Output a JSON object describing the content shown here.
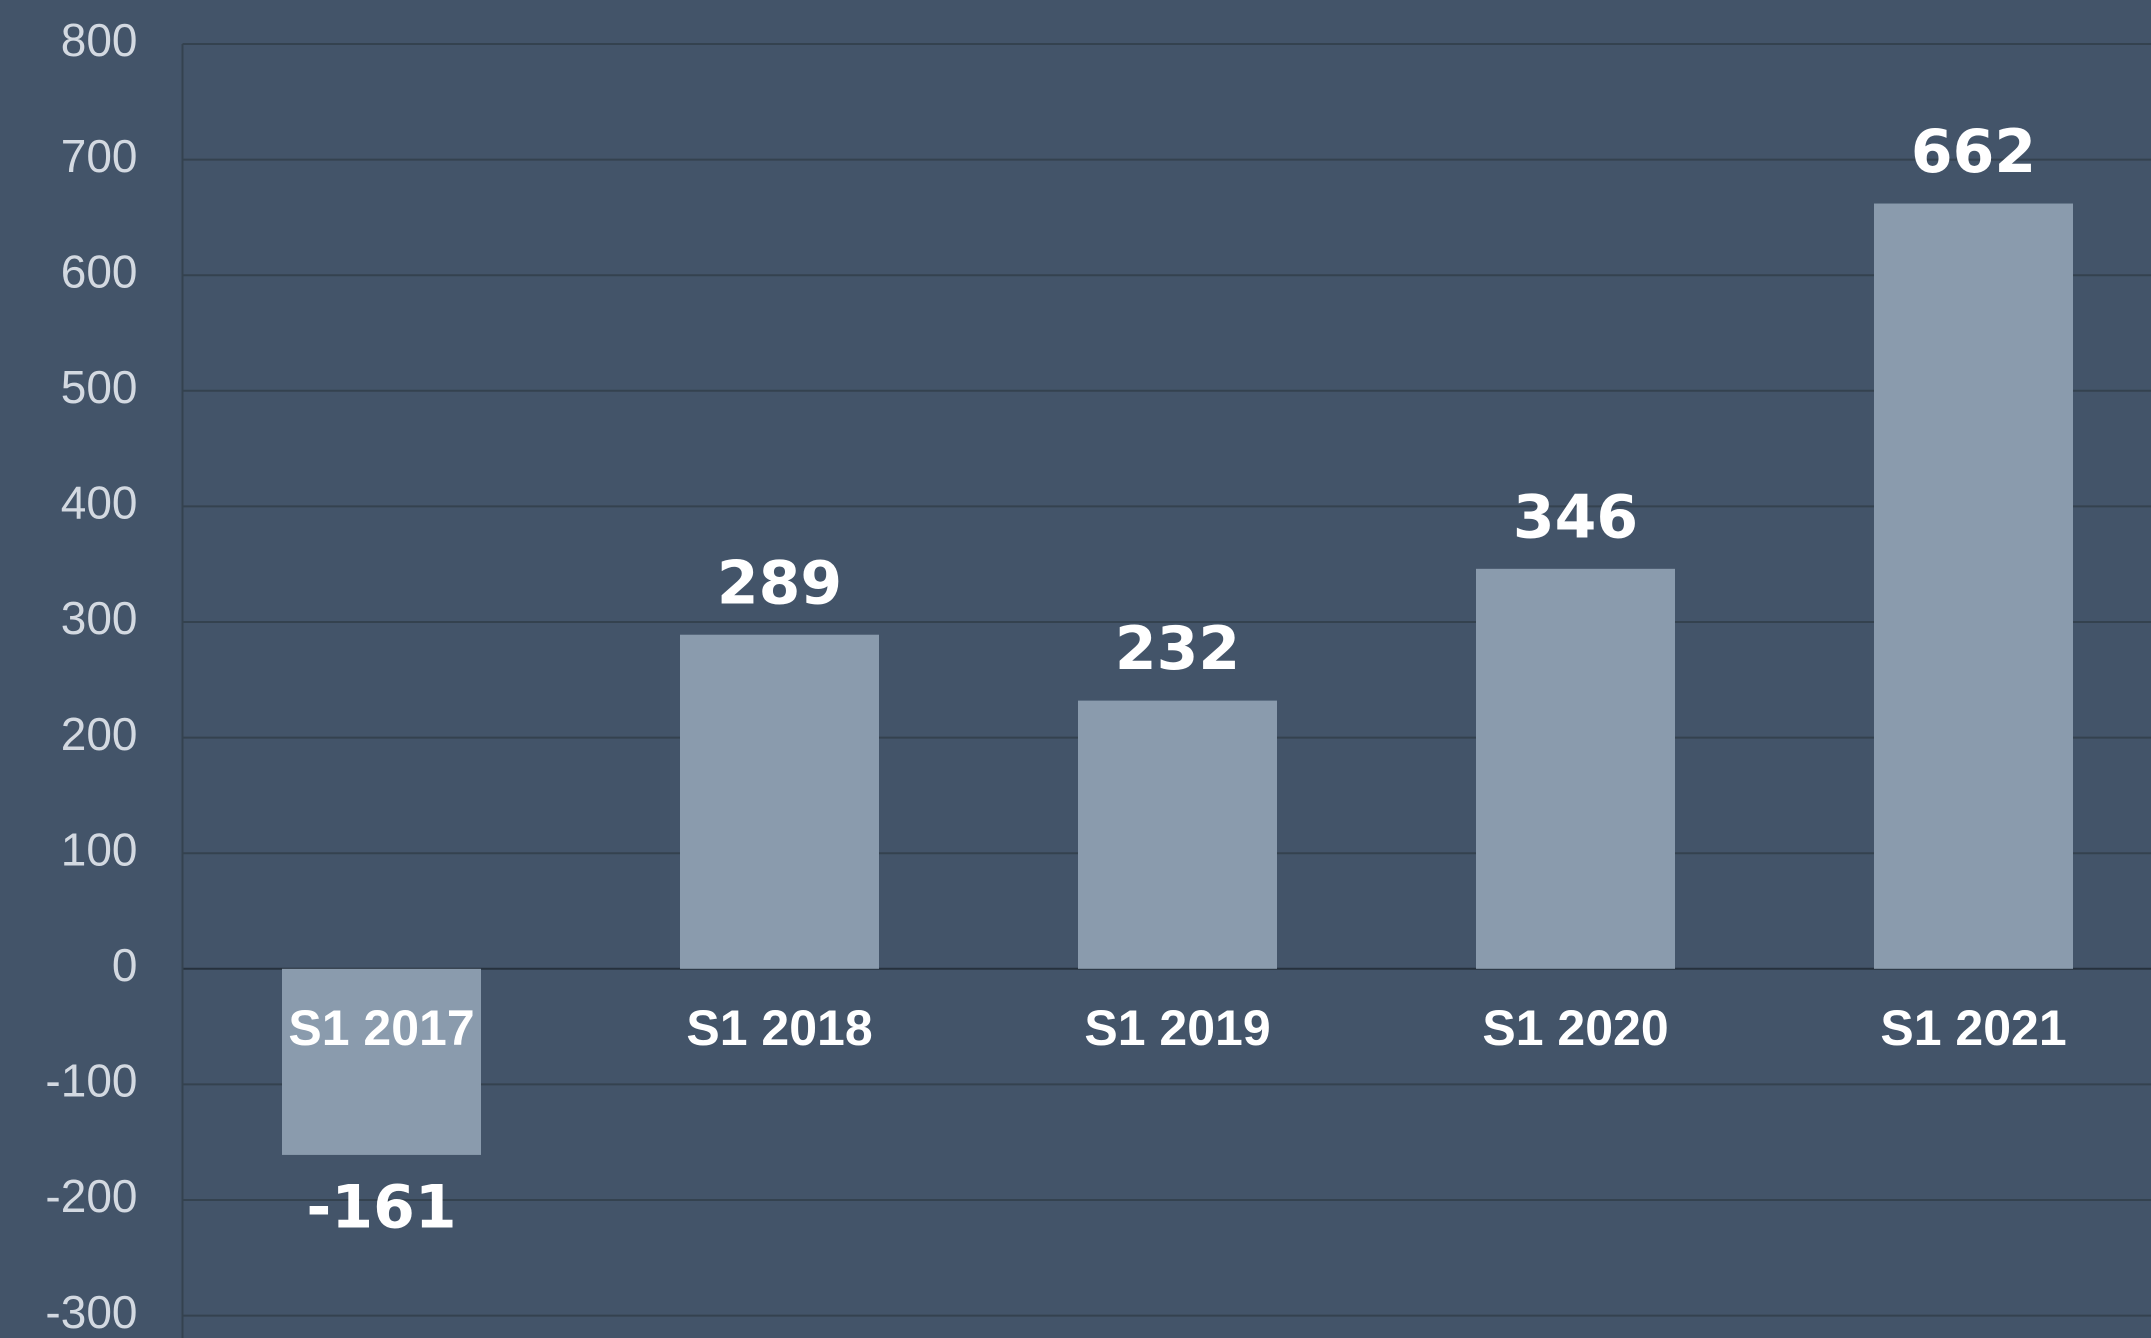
{
  "chart_data": {
    "type": "bar",
    "categories": [
      "S1 2017",
      "S1 2018",
      "S1 2019",
      "S1 2020",
      "S1 2021"
    ],
    "values": [
      -161,
      289,
      232,
      346,
      662
    ],
    "color": "#8a9bad",
    "ylim": [
      -300,
      800
    ],
    "yticks": [
      -300,
      -200,
      -100,
      0,
      100,
      200,
      300,
      400,
      500,
      600,
      700,
      800
    ],
    "grid": true
  }
}
